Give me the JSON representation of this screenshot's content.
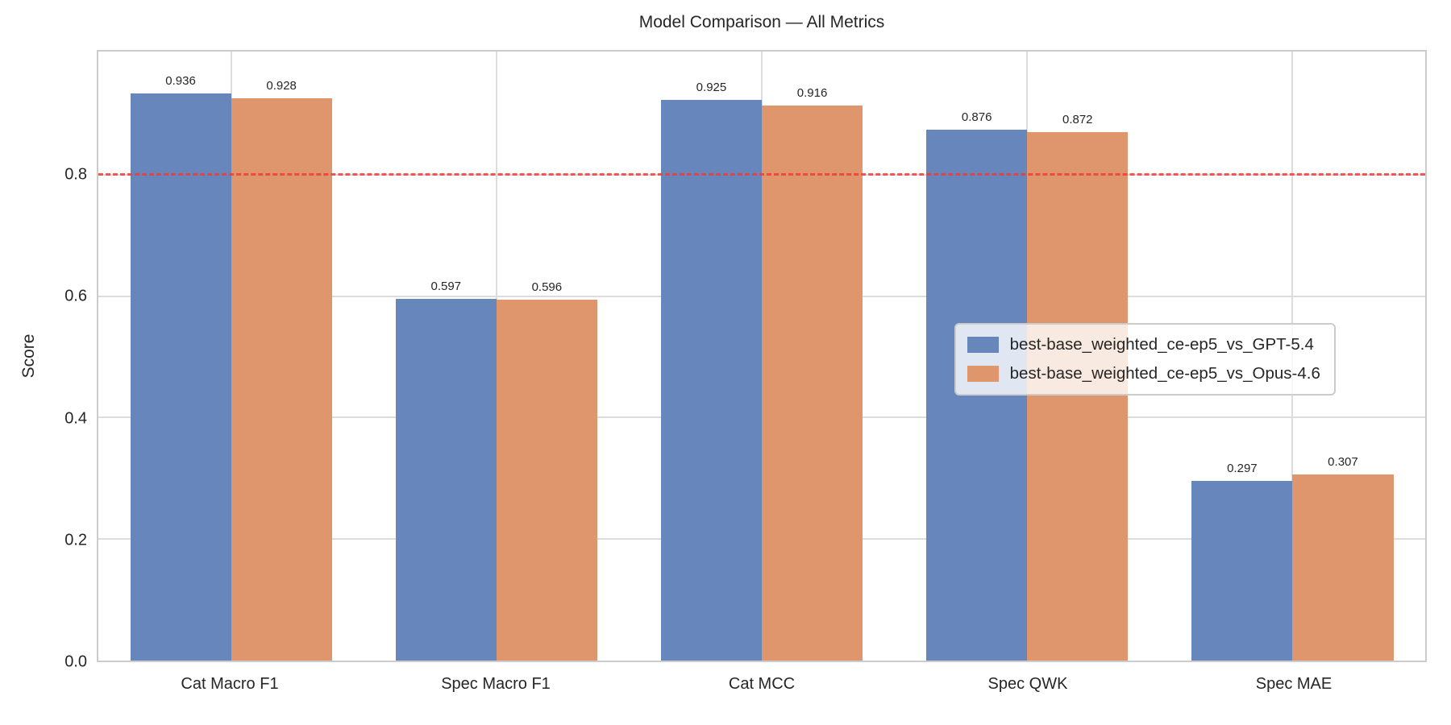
{
  "chart_data": {
    "type": "bar",
    "title": "Model Comparison — All Metrics",
    "xlabel": "",
    "ylabel": "Score",
    "categories": [
      "Cat Macro F1",
      "Spec Macro F1",
      "Cat MCC",
      "Spec QWK",
      "Spec MAE"
    ],
    "series": [
      {
        "name": "best-base_weighted_ce-ep5_vs_GPT-5.4",
        "color": "#6787bc",
        "values": [
          0.936,
          0.597,
          0.925,
          0.876,
          0.297
        ]
      },
      {
        "name": "best-base_weighted_ce-ep5_vs_Opus-4.6",
        "color": "#e0966c",
        "values": [
          0.928,
          0.596,
          0.916,
          0.872,
          0.307
        ]
      }
    ],
    "yticks": [
      0.0,
      0.2,
      0.4,
      0.6,
      0.8
    ],
    "ylim": [
      0,
      1.005
    ],
    "grid": true,
    "legend_position": "center-right",
    "threshold_line": {
      "value": 0.8,
      "color": "#ee3a36",
      "style": "dashed"
    },
    "value_label_decimals": 3
  }
}
